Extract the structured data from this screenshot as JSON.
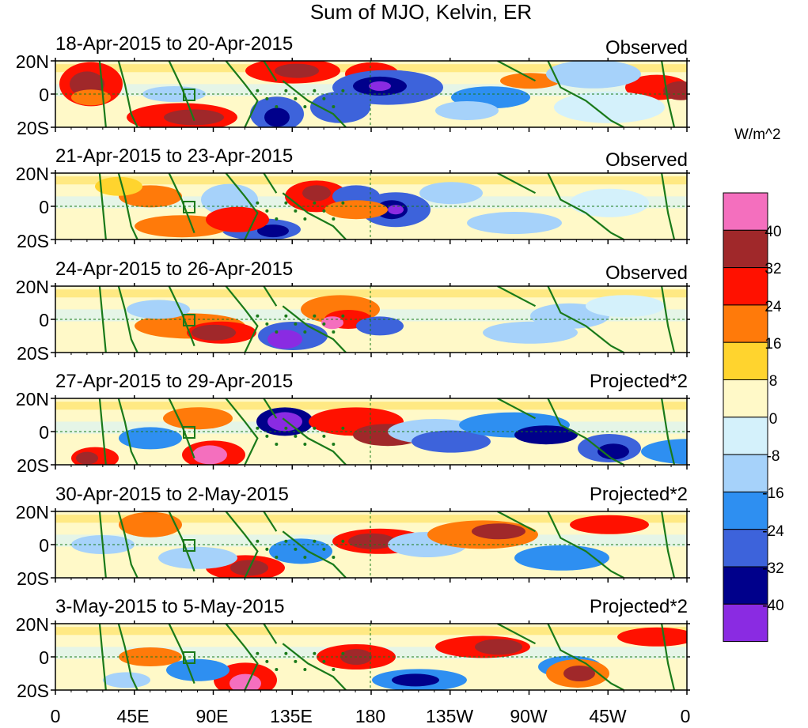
{
  "figure": {
    "title": "Sum of MJO, Kelvin, ER",
    "panels": [
      {
        "date_range": "18-Apr-2015 to 20-Apr-2015",
        "label": "Observed"
      },
      {
        "date_range": "21-Apr-2015 to 23-Apr-2015",
        "label": "Observed"
      },
      {
        "date_range": "24-Apr-2015 to 26-Apr-2015",
        "label": "Observed"
      },
      {
        "date_range": "27-Apr-2015 to 29-Apr-2015",
        "label": "Projected*2"
      },
      {
        "date_range": "30-Apr-2015 to 2-May-2015",
        "label": "Projected*2"
      },
      {
        "date_range": "3-May-2015 to 5-May-2015",
        "label": "Projected*2"
      }
    ],
    "lat_labels": [
      "20N",
      "0",
      "20S"
    ],
    "lon_labels": [
      "0",
      "45E",
      "90E",
      "135E",
      "180",
      "135W",
      "90W",
      "45W",
      "0"
    ],
    "colorbar": {
      "units": "W/m^2",
      "tick_labels": [
        "40",
        "32",
        "24",
        "16",
        "8",
        "0",
        "-8",
        "-16",
        "-24",
        "-32",
        "-40"
      ],
      "colors": [
        "#f46fbe",
        "#a0282a",
        "#ff1100",
        "#ff7a0a",
        "#ffd42e",
        "#fff9c8",
        "#d4f1fb",
        "#a6d2fa",
        "#2e8ff1",
        "#3d63db",
        "#00008b",
        "#8a2be2"
      ]
    },
    "colors": {
      "coast": "#1a7a1a",
      "panel_border": "#000000"
    }
  }
}
